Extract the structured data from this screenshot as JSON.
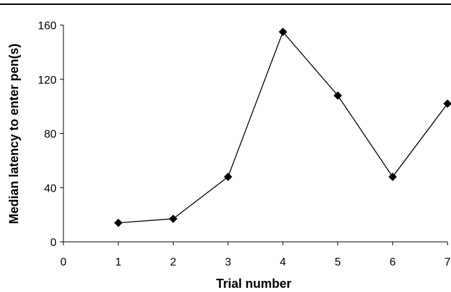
{
  "chart_data": {
    "type": "line",
    "xlabel": "Trial number",
    "ylabel": "Median latency to enter pen(s)",
    "x_ticks": [
      0,
      1,
      2,
      3,
      4,
      5,
      6,
      7
    ],
    "y_ticks": [
      0,
      40,
      80,
      120,
      160
    ],
    "xlim": [
      0,
      7
    ],
    "ylim": [
      0,
      160
    ],
    "grid": false,
    "legend": "none",
    "series": [
      {
        "x": [
          1,
          2,
          3,
          4,
          5,
          6,
          7
        ],
        "values": [
          14,
          17,
          48,
          155,
          108,
          48,
          102
        ],
        "marker": "diamond",
        "color": "#000000"
      }
    ]
  }
}
